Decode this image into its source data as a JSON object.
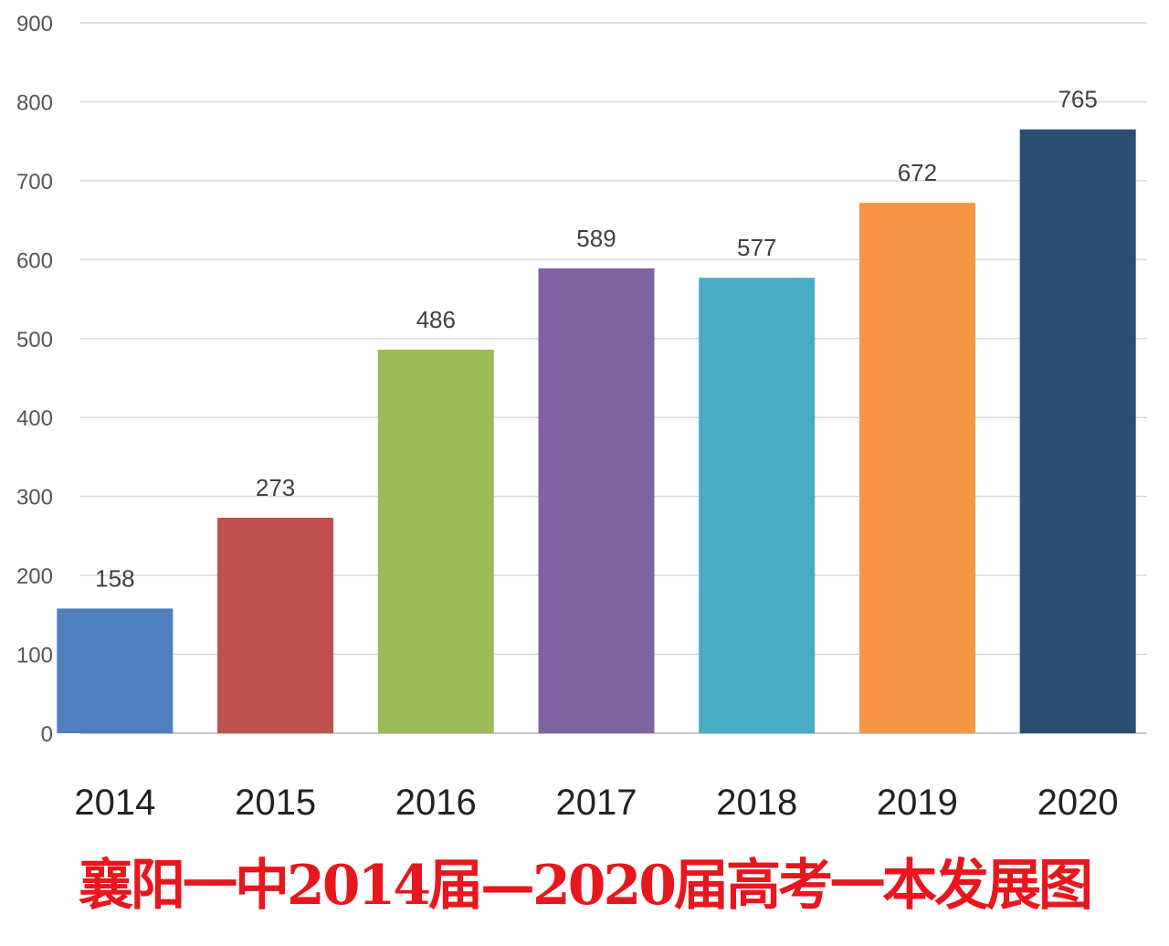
{
  "chart_data": {
    "type": "bar",
    "title": "襄阳一中2014届—2020届高考一本发展图",
    "xlabel": "",
    "ylabel": "",
    "categories": [
      "2014",
      "2015",
      "2016",
      "2017",
      "2018",
      "2019",
      "2020"
    ],
    "values": [
      158,
      273,
      486,
      589,
      577,
      672,
      765
    ],
    "colors": [
      "#4f7fbe",
      "#c0504d",
      "#9bbb59",
      "#8064a2",
      "#4bacc6",
      "#f79646",
      "#2c4d72"
    ],
    "ylim": [
      0,
      900
    ],
    "yticks": [
      0,
      100,
      200,
      300,
      400,
      500,
      600,
      700,
      800,
      900
    ],
    "grid": true,
    "legend": "none",
    "data_labels": true,
    "title_color": "#e8161d"
  }
}
